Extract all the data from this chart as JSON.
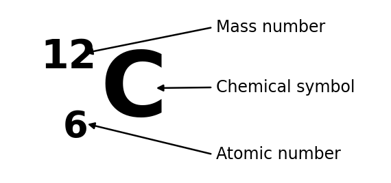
{
  "background_color": "#ffffff",
  "symbol": "C",
  "mass_number": "12",
  "atomic_number": "6",
  "symbol_fontsize": 95,
  "mass_number_fontsize": 42,
  "atomic_number_fontsize": 38,
  "label_mass_number": "Mass number",
  "label_chemical_symbol": "Chemical symbol",
  "label_atomic_number": "Atomic number",
  "label_fontsize": 17,
  "figwidth": 5.7,
  "figheight": 2.68,
  "dpi": 100
}
